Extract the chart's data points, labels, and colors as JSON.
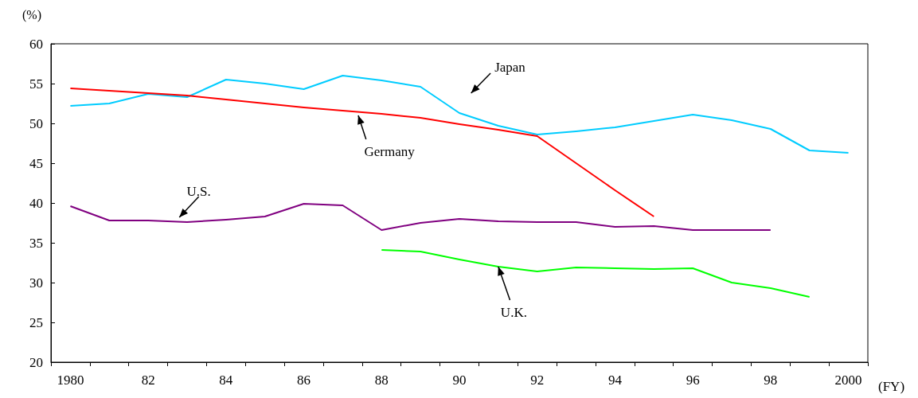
{
  "chart_data": {
    "type": "line",
    "ylabel": "(%)",
    "xlabel": "(FY)",
    "categories": [
      "1980",
      null,
      "82",
      null,
      "84",
      null,
      "86",
      null,
      "88",
      null,
      "90",
      null,
      "92",
      null,
      "94",
      null,
      "96",
      null,
      "98",
      null,
      "2000"
    ],
    "series": [
      {
        "name": "Japan",
        "color": "#00ccff",
        "values": [
          52.2,
          52.5,
          53.7,
          53.3,
          55.5,
          55.0,
          54.3,
          56.0,
          55.4,
          54.6,
          51.3,
          49.7,
          48.6,
          49.0,
          49.5,
          50.3,
          51.1,
          50.4,
          49.3,
          46.6,
          46.3
        ]
      },
      {
        "name": "Germany",
        "color": "#ff0000",
        "values": [
          54.4,
          54.1,
          53.8,
          53.5,
          53.0,
          52.5,
          52.0,
          51.6,
          51.2,
          50.7,
          49.9,
          49.2,
          48.4,
          45.0,
          41.6,
          38.3,
          null,
          null,
          null,
          null,
          null
        ]
      },
      {
        "name": "U.S.",
        "color": "#800080",
        "values": [
          39.6,
          37.8,
          37.8,
          37.6,
          37.9,
          38.3,
          39.9,
          39.7,
          36.6,
          37.5,
          38.0,
          37.7,
          37.6,
          37.6,
          37.0,
          37.1,
          36.6,
          36.6,
          36.6,
          null,
          null
        ]
      },
      {
        "name": "U.K.",
        "color": "#00ff00",
        "values": [
          null,
          null,
          null,
          null,
          null,
          null,
          null,
          null,
          34.1,
          33.9,
          32.9,
          32.0,
          31.4,
          31.9,
          31.8,
          31.7,
          31.8,
          30.0,
          29.3,
          28.2,
          null
        ]
      }
    ],
    "ylim": [
      20,
      60
    ],
    "yticks": [
      20,
      25,
      30,
      35,
      40,
      45,
      50,
      55,
      60
    ],
    "grid": false,
    "legend": false,
    "marker": "none",
    "line_style": "solid"
  }
}
